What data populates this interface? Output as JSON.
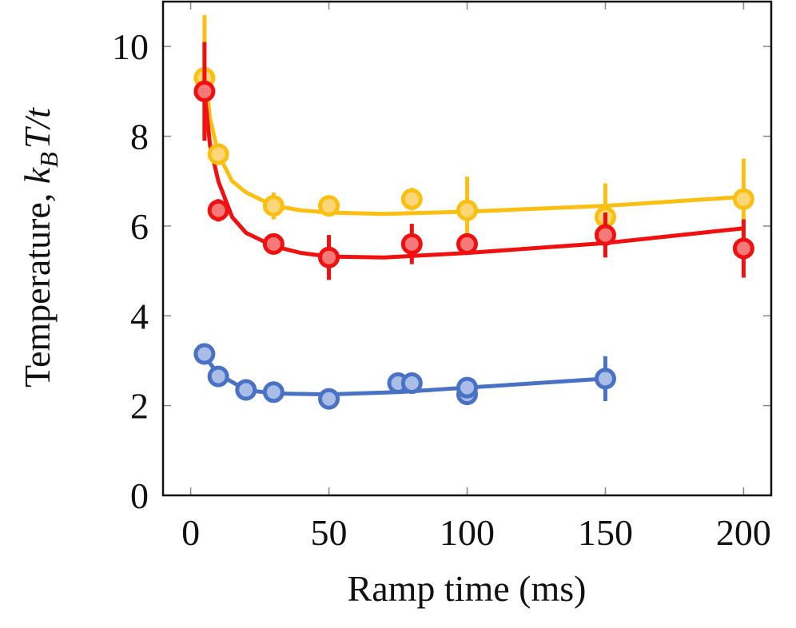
{
  "chart_data": {
    "type": "scatter",
    "xlabel": "Ramp time (ms)",
    "ylabel": [
      "Temperature, ",
      "k",
      "B",
      "T/t"
    ],
    "xlim": [
      -10,
      210
    ],
    "ylim": [
      0,
      11
    ],
    "xticks": [
      0,
      50,
      100,
      150,
      200
    ],
    "yticks": [
      0,
      2,
      4,
      6,
      8,
      10
    ],
    "series": [
      {
        "color": "#fbbf12",
        "fill": "#fcd77a",
        "x": [
          5,
          10,
          30,
          50,
          80,
          100,
          150,
          200
        ],
        "values": [
          9.3,
          7.6,
          6.45,
          6.45,
          6.6,
          6.35,
          6.2,
          6.6
        ],
        "errors": [
          1.4,
          0.15,
          0.3,
          0.15,
          0.25,
          0.75,
          0.75,
          0.9
        ],
        "fit_x": [
          5,
          7,
          10,
          15,
          20,
          30,
          40,
          50,
          70,
          100,
          150,
          200
        ],
        "fit_values": [
          9.5,
          8.4,
          7.6,
          7.0,
          6.75,
          6.45,
          6.35,
          6.3,
          6.27,
          6.32,
          6.45,
          6.65
        ]
      },
      {
        "color": "#f01010",
        "fill": "#f47a7a",
        "x": [
          5,
          10,
          30,
          50,
          80,
          100,
          150,
          200
        ],
        "values": [
          9.0,
          6.35,
          5.6,
          5.3,
          5.6,
          5.6,
          5.8,
          5.5
        ],
        "errors": [
          1.1,
          0.25,
          0.15,
          0.5,
          0.45,
          0.2,
          0.5,
          0.65
        ],
        "fit_x": [
          5,
          7,
          10,
          15,
          20,
          30,
          40,
          50,
          70,
          100,
          150,
          200
        ],
        "fit_values": [
          9.0,
          7.8,
          7.0,
          6.2,
          5.85,
          5.55,
          5.4,
          5.32,
          5.3,
          5.4,
          5.62,
          5.95
        ]
      },
      {
        "color": "#4a72c4",
        "fill": "#a9bde6",
        "x": [
          5,
          10,
          20,
          30,
          50,
          75,
          80,
          100,
          100,
          150
        ],
        "values": [
          3.15,
          2.65,
          2.35,
          2.3,
          2.15,
          2.5,
          2.5,
          2.25,
          2.4,
          2.6
        ],
        "errors": [
          0.1,
          0.1,
          0.1,
          0.1,
          0.2,
          0.1,
          0.1,
          0.2,
          0.1,
          0.5
        ],
        "fit_x": [
          5,
          10,
          20,
          30,
          50,
          75,
          100,
          150
        ],
        "fit_values": [
          3.1,
          2.7,
          2.35,
          2.27,
          2.25,
          2.3,
          2.4,
          2.6
        ]
      }
    ]
  }
}
